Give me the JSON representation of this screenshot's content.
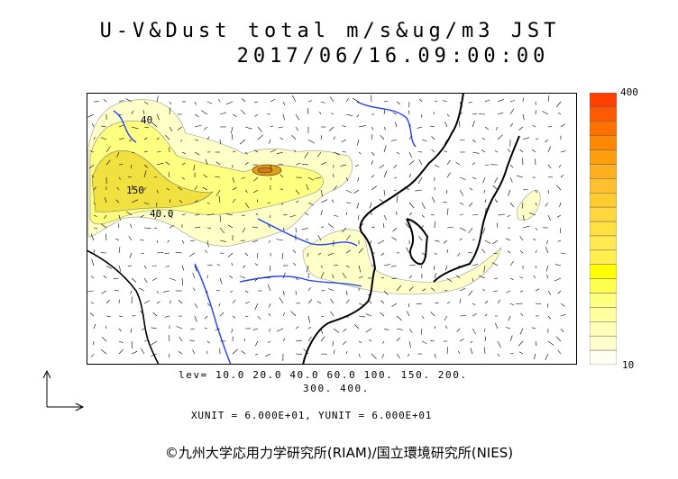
{
  "title": {
    "line1": "U-V&Dust total m/s&ug/m3 JST",
    "line2": "2017/06/16.09:00:00"
  },
  "colorbar": {
    "max_label": "400",
    "min_label": "10",
    "colors": [
      "#ff4000",
      "#ff5a00",
      "#ff7000",
      "#ff8800",
      "#ff9f10",
      "#ffb020",
      "#ffc030",
      "#ffcc30",
      "#ffd840",
      "#ffe040",
      "#ffe850",
      "#fff050",
      "#ffff00",
      "#ffff50",
      "#ffff80",
      "#ffffa0",
      "#ffffb8",
      "#ffffcc",
      "#fffff0"
    ]
  },
  "map": {
    "contour_labels": [
      "40",
      "150",
      "40.0"
    ],
    "dust_colors": {
      "light": "#ffffc0",
      "mid": "#ffff80",
      "high": "#f0e040",
      "peak": "#e0a020"
    },
    "land_line_color": "#000000",
    "river_color": "#2040ff"
  },
  "legend": {
    "lev_line1": "lev= 10.0 20.0 40.0 60.0 100. 150. 200.",
    "lev_line2": "300. 400."
  },
  "units": {
    "text": "XUNIT = 6.000E+01, YUNIT = 6.000E+01"
  },
  "copyright": "©九州大学応用力学研究所(RIAM)/国立環境研究所(NIES)"
}
